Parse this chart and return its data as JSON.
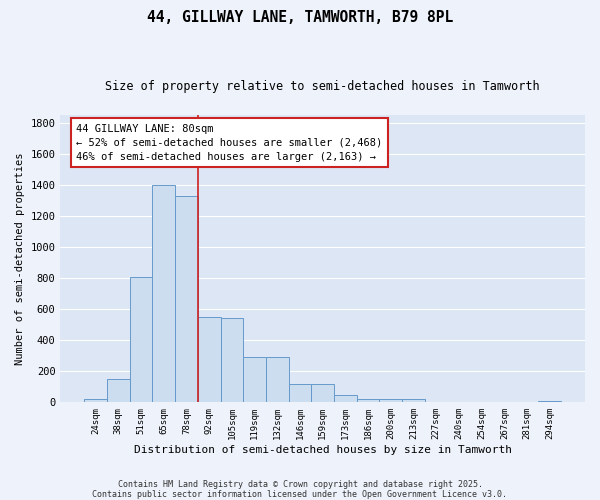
{
  "title": "44, GILLWAY LANE, TAMWORTH, B79 8PL",
  "subtitle": "Size of property relative to semi-detached houses in Tamworth",
  "xlabel": "Distribution of semi-detached houses by size in Tamworth",
  "ylabel": "Number of semi-detached properties",
  "categories": [
    "24sqm",
    "38sqm",
    "51sqm",
    "65sqm",
    "78sqm",
    "92sqm",
    "105sqm",
    "119sqm",
    "132sqm",
    "146sqm",
    "159sqm",
    "173sqm",
    "186sqm",
    "200sqm",
    "213sqm",
    "227sqm",
    "240sqm",
    "254sqm",
    "267sqm",
    "281sqm",
    "294sqm"
  ],
  "values": [
    20,
    150,
    810,
    1400,
    1330,
    550,
    540,
    295,
    295,
    120,
    120,
    50,
    20,
    20,
    20,
    5,
    3,
    2,
    2,
    2,
    10
  ],
  "bar_color": "#ccddf0",
  "bar_edge_color": "#6699cc",
  "vline_x_index": 4,
  "vline_color": "#cc2222",
  "annotation_text": "44 GILLWAY LANE: 80sqm\n← 52% of semi-detached houses are smaller (2,468)\n46% of semi-detached houses are larger (2,163) →",
  "annotation_fontsize": 7.5,
  "title_fontsize": 10.5,
  "subtitle_fontsize": 8.5,
  "xlabel_fontsize": 8,
  "ylabel_fontsize": 7.5,
  "tick_fontsize": 6.5,
  "footer_text": "Contains HM Land Registry data © Crown copyright and database right 2025.\nContains public sector information licensed under the Open Government Licence v3.0.",
  "ylim": [
    0,
    1850
  ],
  "yticks": [
    0,
    200,
    400,
    600,
    800,
    1000,
    1200,
    1400,
    1600,
    1800
  ],
  "background_color": "#eef2fa",
  "grid_color": "#ffffff",
  "axes_bg_color": "#dde6f4"
}
